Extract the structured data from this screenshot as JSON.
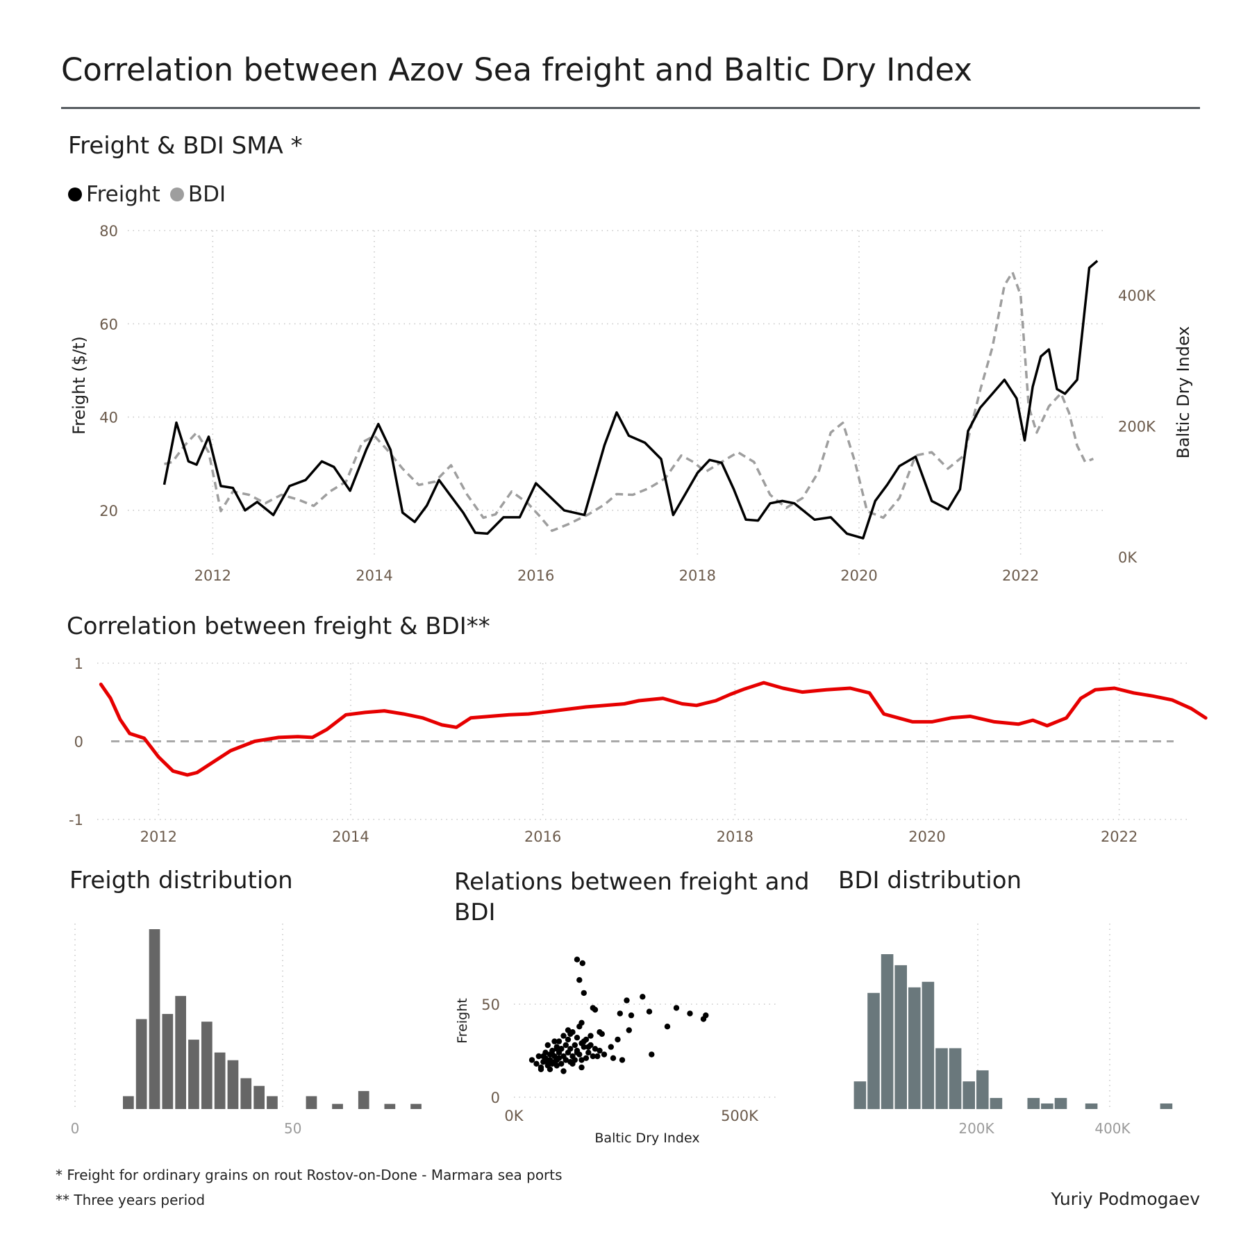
{
  "title": "Correlation between Azov Sea freight and Baltic Dry Index",
  "footnotes": {
    "note1": "*   Freight for ordinary grains on rout Rostov-on-Done - Marmara sea ports",
    "note2": "** Three years period"
  },
  "author": "Yuriy Podmogaev",
  "colors": {
    "freight": "#000000",
    "bdi": "#9e9e9e",
    "correlation": "#e60000",
    "freight_hist": "#666666",
    "bdi_hist": "#6a787c"
  },
  "chart_data": [
    {
      "id": "sma",
      "type": "line",
      "title": "Freight & BDI SMA *",
      "legend": [
        "Freight",
        "BDI"
      ],
      "ylabel": "Freight ($/t)",
      "y2label": "Baltic Dry Index",
      "ylim": [
        10,
        80
      ],
      "y2lim": [
        0,
        400000
      ],
      "x_ticks": [
        "2012",
        "2014",
        "2016",
        "2018",
        "2020",
        "2022"
      ],
      "y_ticks": [
        "20",
        "40",
        "60",
        "80"
      ],
      "y2_ticks": [
        "0K",
        "200K",
        "400K"
      ],
      "y2_tick_values": [
        0,
        200000,
        400000
      ],
      "series": [
        {
          "name": "Freight",
          "x": [
            2011.4,
            2011.55,
            2011.7,
            2011.8,
            2011.95,
            2012.1,
            2012.25,
            2012.4,
            2012.55,
            2012.75,
            2012.95,
            2013.15,
            2013.35,
            2013.5,
            2013.7,
            2013.9,
            2014.05,
            2014.2,
            2014.35,
            2014.5,
            2014.65,
            2014.8,
            2014.95,
            2015.1,
            2015.25,
            2015.4,
            2015.6,
            2015.8,
            2016.0,
            2016.2,
            2016.35,
            2016.6,
            2016.85,
            2017.0,
            2017.15,
            2017.35,
            2017.55,
            2017.7,
            2017.85,
            2018.0,
            2018.15,
            2018.3,
            2018.45,
            2018.6,
            2018.75,
            2018.9,
            2019.05,
            2019.2,
            2019.45,
            2019.65,
            2019.85,
            2020.05,
            2020.2,
            2020.35,
            2020.5,
            2020.7,
            2020.9,
            2021.1,
            2021.25,
            2021.35,
            2021.5,
            2021.65,
            2021.8,
            2021.95,
            2022.05,
            2022.15,
            2022.25,
            2022.35,
            2022.45,
            2022.55,
            2022.7,
            2022.85,
            2022.95
          ],
          "values": [
            25.5,
            38.8,
            30.5,
            29.8,
            35.8,
            25.2,
            24.8,
            20.0,
            21.8,
            19.0,
            25.2,
            26.5,
            30.5,
            29.3,
            24.2,
            33.0,
            38.5,
            33.0,
            19.5,
            17.5,
            21.0,
            26.5,
            23.0,
            19.5,
            15.2,
            15.0,
            18.5,
            18.5,
            25.8,
            22.5,
            20.0,
            19.0,
            34.0,
            41.0,
            36.0,
            34.5,
            31.0,
            19.0,
            23.5,
            28.0,
            30.8,
            30.2,
            24.5,
            18.0,
            17.8,
            21.5,
            22.0,
            21.5,
            18.0,
            18.5,
            15.0,
            14.0,
            22.0,
            25.5,
            29.5,
            31.5,
            22.0,
            20.2,
            24.5,
            37.0,
            42.0,
            45.0,
            48.0,
            44.0,
            35.0,
            46.5,
            53.0,
            54.5,
            46.0,
            45.0,
            48.0,
            72.0,
            73.5
          ]
        },
        {
          "name": "BDI",
          "x": [
            2011.4,
            2011.5,
            2011.65,
            2011.8,
            2011.95,
            2012.1,
            2012.25,
            2012.45,
            2012.65,
            2012.85,
            2013.05,
            2013.25,
            2013.45,
            2013.65,
            2013.85,
            2014.0,
            2014.15,
            2014.35,
            2014.55,
            2014.75,
            2014.95,
            2015.15,
            2015.35,
            2015.5,
            2015.7,
            2015.9,
            2016.05,
            2016.2,
            2016.4,
            2016.65,
            2016.85,
            2017.0,
            2017.2,
            2017.4,
            2017.6,
            2017.8,
            2017.95,
            2018.1,
            2018.3,
            2018.5,
            2018.7,
            2018.9,
            2019.1,
            2019.3,
            2019.5,
            2019.65,
            2019.8,
            2019.95,
            2020.1,
            2020.3,
            2020.5,
            2020.7,
            2020.9,
            2021.1,
            2021.3,
            2021.5,
            2021.65,
            2021.8,
            2021.9,
            2022.0,
            2022.1,
            2022.2,
            2022.35,
            2022.5,
            2022.6,
            2022.7,
            2022.8,
            2022.9
          ],
          "values": [
            142000,
            145000,
            170000,
            190000,
            160000,
            70000,
            100000,
            95000,
            82000,
            95000,
            88000,
            78000,
            100000,
            115000,
            175000,
            185000,
            165000,
            135000,
            110000,
            115000,
            140000,
            95000,
            60000,
            65000,
            100000,
            82000,
            62000,
            40000,
            50000,
            65000,
            80000,
            96000,
            95000,
            105000,
            120000,
            155000,
            145000,
            130000,
            145000,
            160000,
            145000,
            95000,
            75000,
            90000,
            130000,
            190000,
            205000,
            145000,
            70000,
            60000,
            90000,
            155000,
            160000,
            135000,
            155000,
            255000,
            320000,
            415000,
            435000,
            400000,
            230000,
            190000,
            230000,
            250000,
            220000,
            170000,
            145000,
            150000
          ]
        }
      ]
    },
    {
      "id": "correlation",
      "type": "line",
      "title": "Correlation between freight & BDI**",
      "ylim": [
        -1,
        1
      ],
      "y_ticks": [
        "-1",
        "0",
        "1"
      ],
      "x_ticks": [
        "2012",
        "2014",
        "2016",
        "2018",
        "2020",
        "2022"
      ],
      "series": [
        {
          "name": "",
          "x": [
            2011.4,
            2011.5,
            2011.6,
            2011.7,
            2011.85,
            2012.0,
            2012.15,
            2012.3,
            2012.4,
            2012.55,
            2012.75,
            2013.0,
            2013.25,
            2013.45,
            2013.6,
            2013.75,
            2013.95,
            2014.15,
            2014.35,
            2014.55,
            2014.75,
            2014.95,
            2015.1,
            2015.25,
            2015.45,
            2015.65,
            2015.85,
            2016.05,
            2016.25,
            2016.45,
            2016.65,
            2016.85,
            2017.0,
            2017.25,
            2017.45,
            2017.6,
            2017.8,
            2017.95,
            2018.1,
            2018.3,
            2018.5,
            2018.7,
            2018.95,
            2019.2,
            2019.4,
            2019.55,
            2019.7,
            2019.85,
            2020.05,
            2020.25,
            2020.45,
            2020.7,
            2020.95,
            2021.1,
            2021.25,
            2021.45,
            2021.6,
            2021.75,
            2021.95,
            2022.15,
            2022.35,
            2022.55,
            2022.75,
            2022.9
          ],
          "values": [
            0.73,
            0.55,
            0.28,
            0.1,
            0.04,
            -0.2,
            -0.38,
            -0.43,
            -0.4,
            -0.28,
            -0.12,
            0.0,
            0.05,
            0.06,
            0.05,
            0.15,
            0.34,
            0.37,
            0.39,
            0.35,
            0.3,
            0.21,
            0.18,
            0.3,
            0.32,
            0.34,
            0.35,
            0.38,
            0.41,
            0.44,
            0.46,
            0.48,
            0.52,
            0.55,
            0.48,
            0.46,
            0.52,
            0.6,
            0.67,
            0.75,
            0.68,
            0.63,
            0.66,
            0.68,
            0.62,
            0.35,
            0.3,
            0.25,
            0.25,
            0.3,
            0.32,
            0.25,
            0.22,
            0.27,
            0.2,
            0.3,
            0.55,
            0.66,
            0.68,
            0.62,
            0.58,
            0.53,
            0.42,
            0.3
          ]
        }
      ]
    },
    {
      "id": "freight-dist",
      "type": "bar",
      "title": "Freigth distribution",
      "x_ticks": [
        "0",
        "50"
      ],
      "x_tick_values": [
        0,
        50
      ],
      "xlim": [
        0,
        80
      ],
      "bins_start": [
        11,
        14,
        17,
        20,
        23,
        26,
        29,
        32,
        35,
        38,
        41,
        44,
        53,
        59,
        65,
        71,
        77
      ],
      "bin_width": 2.5,
      "values": [
        5,
        35,
        70,
        37,
        44,
        27,
        34,
        22,
        19,
        12,
        9,
        5,
        5,
        2,
        7,
        2,
        2
      ]
    },
    {
      "id": "relations",
      "type": "scatter",
      "title": "Relations between freight and BDI",
      "xlabel": "Baltic Dry Index",
      "ylabel": "Freight",
      "xlim": [
        0,
        560000
      ],
      "ylim": [
        0,
        80
      ],
      "x_ticks": [
        "0K",
        "500K"
      ],
      "x_tick_values": [
        0,
        500000
      ],
      "y_ticks": [
        "0",
        "50"
      ],
      "y_tick_values": [
        0,
        50
      ],
      "x": [
        40000,
        50000,
        55000,
        60000,
        65000,
        70000,
        70000,
        75000,
        80000,
        80000,
        85000,
        85000,
        90000,
        90000,
        95000,
        95000,
        100000,
        100000,
        100000,
        105000,
        105000,
        110000,
        110000,
        115000,
        115000,
        120000,
        120000,
        125000,
        125000,
        130000,
        130000,
        135000,
        135000,
        140000,
        140000,
        145000,
        150000,
        150000,
        155000,
        160000,
        165000,
        170000,
        175000,
        180000,
        190000,
        200000,
        220000,
        240000,
        260000,
        60000,
        65000,
        75000,
        80000,
        90000,
        95000,
        105000,
        115000,
        120000,
        130000,
        140000,
        145000,
        150000,
        155000,
        165000,
        175000,
        185000,
        195000,
        215000,
        235000,
        250000,
        285000,
        300000,
        305000,
        340000,
        360000,
        390000,
        420000,
        425000,
        75000,
        85000,
        95000,
        110000,
        125000,
        150000,
        160000,
        170000,
        180000,
        190000,
        230000,
        255000,
        145000,
        152000,
        140000,
        155000
      ],
      "values": [
        20,
        18,
        22,
        15,
        19,
        21,
        24,
        17,
        20,
        23,
        18,
        25,
        22,
        19,
        27,
        20,
        24,
        21,
        30,
        18,
        26,
        22,
        33,
        20,
        28,
        24,
        31,
        19,
        26,
        22,
        35,
        20,
        28,
        25,
        32,
        23,
        29,
        20,
        27,
        31,
        24,
        33,
        22,
        26,
        35,
        23,
        21,
        20,
        44,
        16,
        22,
        28,
        15,
        30,
        17,
        26,
        20,
        36,
        18,
        24,
        38,
        16,
        30,
        27,
        48,
        22,
        34,
        27,
        45,
        52,
        54,
        46,
        23,
        38,
        48,
        45,
        42,
        44,
        19,
        23,
        26,
        14,
        34,
        40,
        21,
        28,
        47,
        25,
        31,
        36,
        63,
        72,
        74,
        56
      ]
    },
    {
      "id": "bdi-dist",
      "type": "bar",
      "title": "BDI distribution",
      "x_ticks": [
        "200K",
        "400K"
      ],
      "x_tick_values": [
        200000,
        400000
      ],
      "xlim": [
        0,
        500000
      ],
      "bins_start": [
        20000,
        40000,
        60000,
        80000,
        100000,
        120000,
        140000,
        160000,
        180000,
        200000,
        220000,
        240000,
        275000,
        295000,
        315000,
        360000,
        470000
      ],
      "bin_width": 18000,
      "values": [
        5,
        21,
        28,
        26,
        22,
        23,
        11,
        11,
        5,
        7,
        2,
        0,
        2,
        1,
        2,
        1,
        1
      ]
    }
  ]
}
